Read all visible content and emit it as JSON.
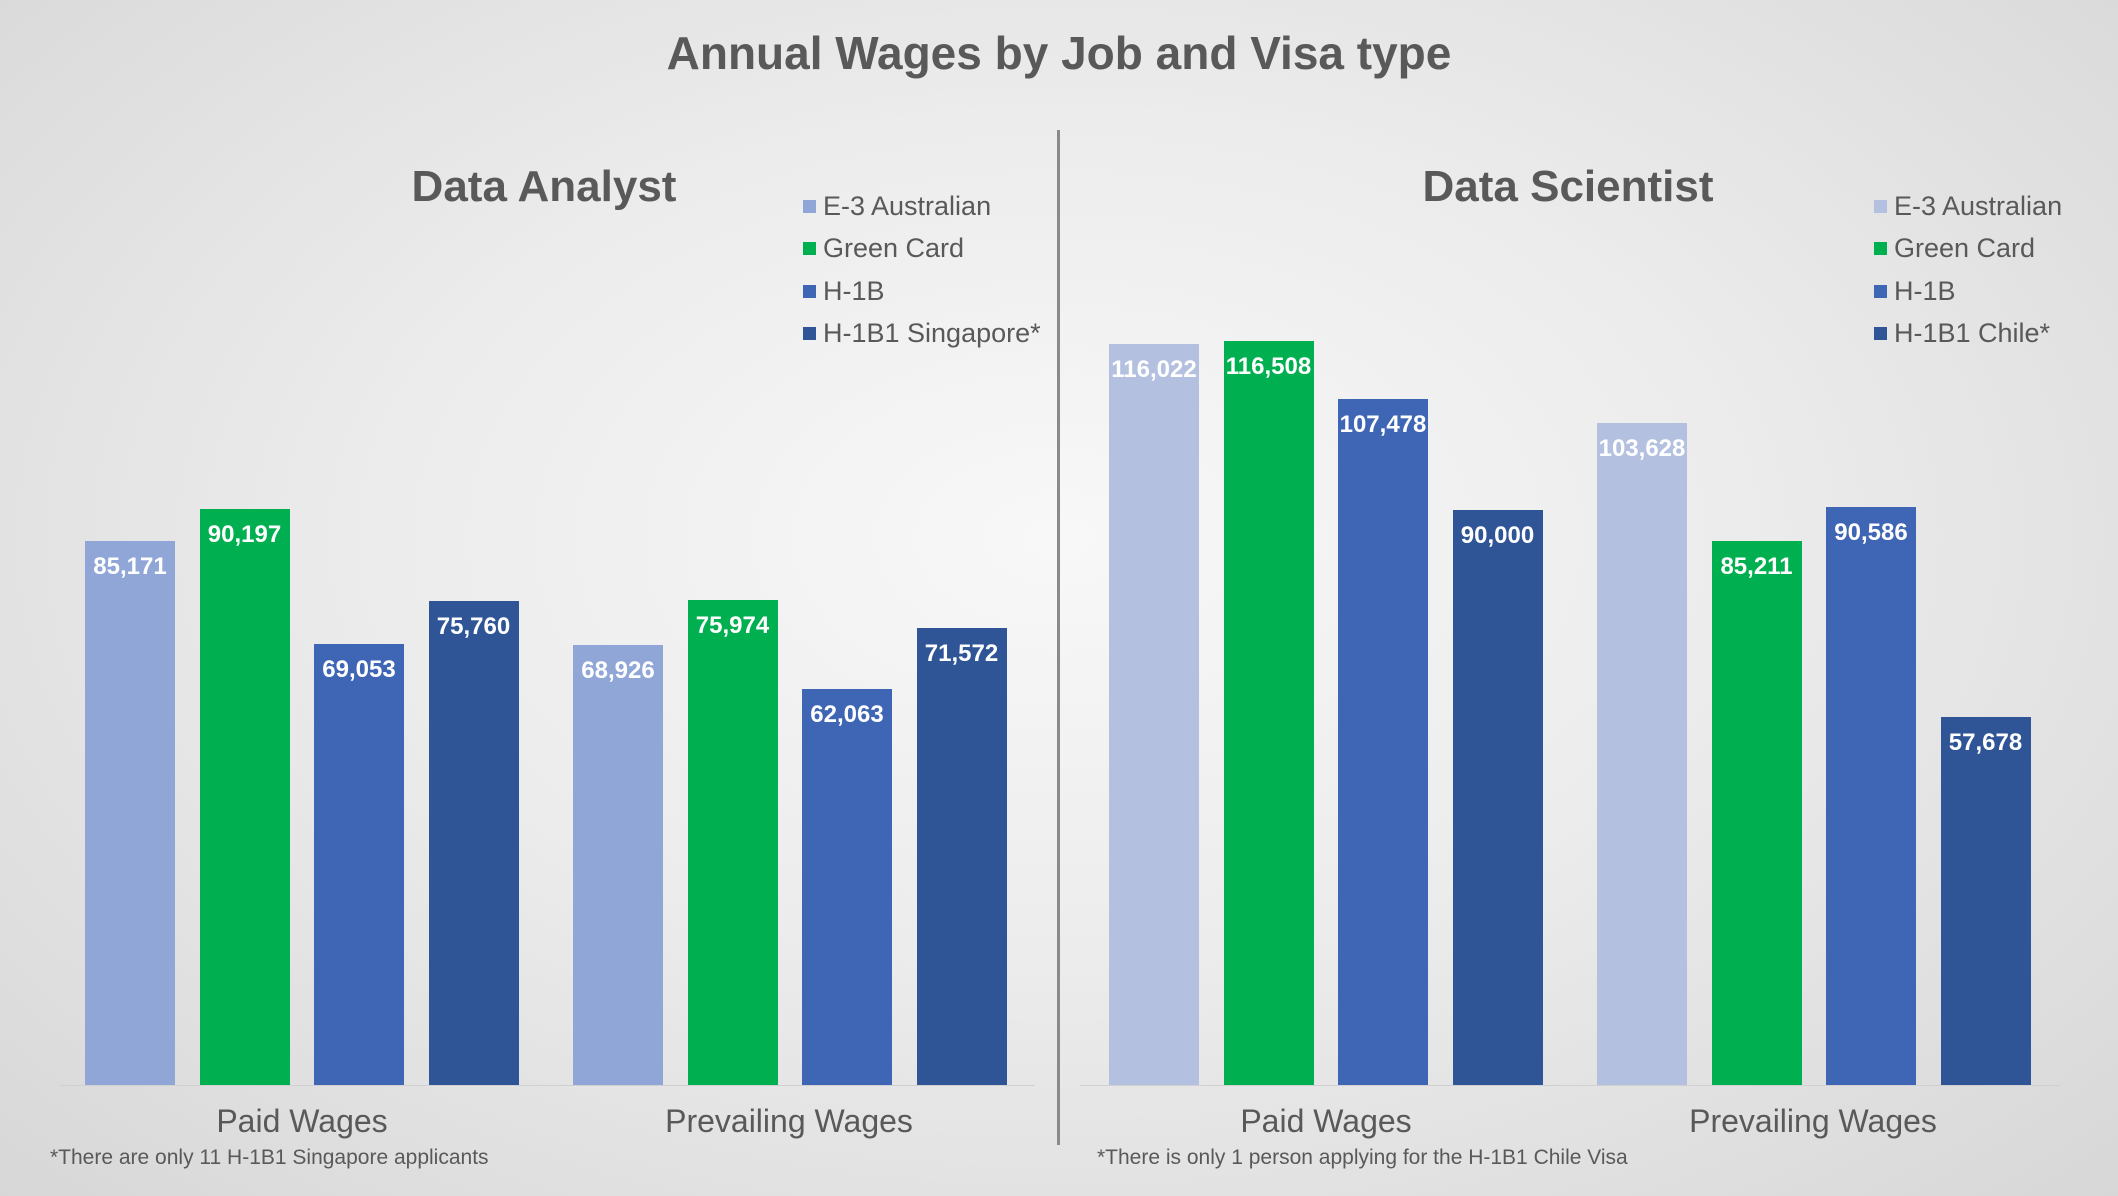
{
  "title": "Annual Wages by Job and Visa type",
  "chart_data": [
    {
      "type": "bar",
      "title": "Data Analyst",
      "categories": [
        "Paid Wages",
        "Prevailing Wages"
      ],
      "series": [
        {
          "name": "E-3 Australian",
          "color": "#8FA6D7",
          "values": [
            85171,
            68926
          ],
          "labels": [
            "85,171",
            "68,926"
          ]
        },
        {
          "name": "Green Card",
          "color": "#00B050",
          "values": [
            90197,
            75974
          ],
          "labels": [
            "90,197",
            "75,974"
          ]
        },
        {
          "name": "H-1B",
          "color": "#3F66B4",
          "values": [
            69053,
            62063
          ],
          "labels": [
            "69,053",
            "62,063"
          ]
        },
        {
          "name": "H-1B1 Singapore*",
          "color": "#2F5597",
          "values": [
            75760,
            71572
          ],
          "labels": [
            "75,760",
            "71,572"
          ]
        }
      ],
      "ylim": [
        0,
        120000
      ],
      "legend": "top-right",
      "footnote": "*There are only 11 H-1B1 Singapore applicants"
    },
    {
      "type": "bar",
      "title": "Data Scientist",
      "categories": [
        "Paid Wages",
        "Prevailing Wages"
      ],
      "series": [
        {
          "name": "E-3 Australian",
          "color": "#B4C0E0",
          "values": [
            116022,
            103628
          ],
          "labels": [
            "116,022",
            "103,628"
          ]
        },
        {
          "name": "Green Card",
          "color": "#00B050",
          "values": [
            116508,
            85211
          ],
          "labels": [
            "116,508",
            "85,211"
          ]
        },
        {
          "name": "H-1B",
          "color": "#3F66B4",
          "values": [
            107478,
            90586
          ],
          "labels": [
            "107,478",
            "90,586"
          ]
        },
        {
          "name": "H-1B1 Chile*",
          "color": "#2F5597",
          "values": [
            90000,
            57678
          ],
          "labels": [
            "90,000",
            "57,678"
          ]
        }
      ],
      "ylim": [
        0,
        120000
      ],
      "legend": "top-right",
      "footnote": "*There is only 1 person applying for the H-1B1 Chile Visa"
    }
  ]
}
